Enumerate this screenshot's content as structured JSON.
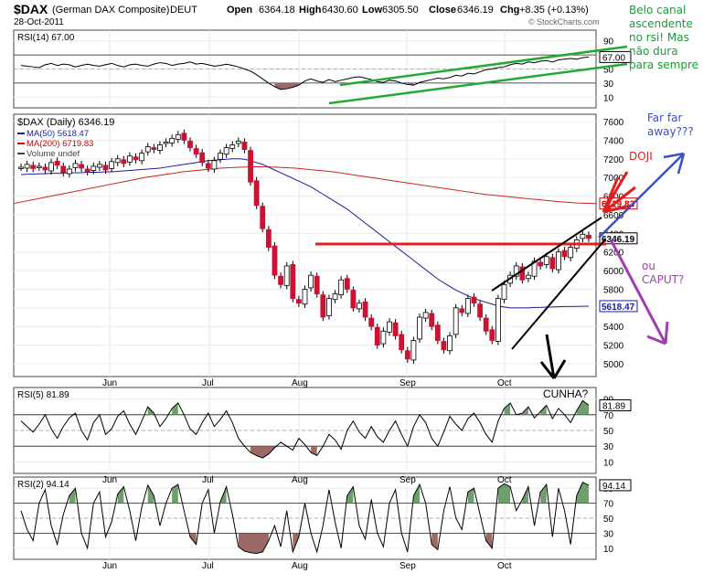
{
  "header": {
    "symbol": "$DAX",
    "name": "(German DAX Composite)",
    "exchange": "DEUT",
    "date": "28-Oct-2011",
    "open_label": "Open",
    "open": "6364.18",
    "high_label": "High",
    "high": "6430.60",
    "low_label": "Low",
    "low": "6305.50",
    "close_label": "Close",
    "close": "6346.19",
    "chg_label": "Chg",
    "chg": "+8.35 (+0.13%)",
    "watermark": "© StockCharts.com"
  },
  "months": [
    "Jun",
    "Jul",
    "Aug",
    "Sep",
    "Oct"
  ],
  "rsi14": {
    "title": "RSI(14) 67.00",
    "ticks": [
      "90",
      "70",
      "50",
      "30",
      "10"
    ],
    "last_tag": "67.00",
    "values": [
      55,
      54,
      53,
      52,
      56,
      58,
      55,
      57,
      56,
      53,
      55,
      57,
      55,
      54,
      56,
      58,
      55,
      53,
      56,
      57,
      55,
      54,
      57,
      59,
      58,
      55,
      57,
      58,
      60,
      57,
      58,
      56,
      54,
      55,
      57,
      55,
      53,
      50,
      47,
      42,
      36,
      30,
      25,
      21,
      22,
      24,
      27,
      33,
      36,
      33,
      31,
      35,
      32,
      34,
      36,
      38,
      39,
      37,
      35,
      32,
      31,
      34,
      33,
      30,
      28,
      27,
      31,
      33,
      35,
      37,
      36,
      38,
      41,
      40,
      44,
      43,
      46,
      49,
      50,
      52,
      53,
      56,
      58,
      57,
      60,
      59,
      61,
      62,
      60,
      63,
      64,
      65,
      64,
      66,
      67
    ]
  },
  "price": {
    "title": "$DAX (Daily) 6346.19",
    "legend": [
      {
        "label": "MA(50) 5618.47",
        "color": "#1c1c9c"
      },
      {
        "label": "MA(200) 6719.83",
        "color": "#cc0000"
      },
      {
        "label": "Volume undef",
        "color": "#444444"
      }
    ],
    "ticks": [
      "7600",
      "7400",
      "7200",
      "7000",
      "6800",
      "6600",
      "6400",
      "6200",
      "6000",
      "5800",
      "5600",
      "5400",
      "5200",
      "5000"
    ],
    "tags": {
      "close": "6346.19",
      "ma50": "5618.47",
      "ma200": "6719.83"
    },
    "closes": [
      7110,
      7140,
      7095,
      7120,
      7080,
      7160,
      7130,
      7050,
      7090,
      7150,
      7100,
      7060,
      7120,
      7140,
      7080,
      7170,
      7200,
      7150,
      7230,
      7190,
      7260,
      7330,
      7300,
      7350,
      7380,
      7420,
      7460,
      7400,
      7320,
      7250,
      7160,
      7100,
      7180,
      7260,
      7320,
      7350,
      7390,
      7300,
      6950,
      6700,
      6450,
      6250,
      5950,
      5850,
      6050,
      5700,
      5650,
      5800,
      5950,
      5750,
      5500,
      5700,
      5750,
      5900,
      5800,
      5600,
      5650,
      5500,
      5400,
      5200,
      5350,
      5450,
      5300,
      5150,
      5050,
      5250,
      5500,
      5550,
      5400,
      5250,
      5150,
      5300,
      5600,
      5550,
      5700,
      5650,
      5500,
      5350,
      5250,
      5700,
      5850,
      5950,
      6050,
      5900,
      5950,
      6100,
      6050,
      6150,
      6020,
      6200,
      6150,
      6250,
      6330,
      6390,
      6346
    ],
    "ma50": [
      7030,
      7035,
      7035,
      7040,
      7040,
      7045,
      7045,
      7045,
      7050,
      7050,
      7050,
      7055,
      7055,
      7055,
      7060,
      7060,
      7065,
      7070,
      7075,
      7080,
      7085,
      7090,
      7095,
      7100,
      7110,
      7120,
      7130,
      7140,
      7150,
      7160,
      7170,
      7180,
      7185,
      7190,
      7195,
      7200,
      7200,
      7195,
      7180,
      7160,
      7140,
      7110,
      7080,
      7050,
      7020,
      6990,
      6960,
      6930,
      6900,
      6860,
      6820,
      6780,
      6740,
      6700,
      6660,
      6610,
      6560,
      6510,
      6460,
      6410,
      6360,
      6310,
      6260,
      6210,
      6160,
      6110,
      6060,
      6010,
      5960,
      5910,
      5870,
      5830,
      5790,
      5760,
      5730,
      5700,
      5680,
      5660,
      5640,
      5620,
      5610,
      5600,
      5600,
      5600,
      5600,
      5605,
      5605,
      5608,
      5610,
      5612,
      5614,
      5615,
      5616,
      5617,
      5618
    ],
    "ma200": [
      6720,
      6760,
      6800,
      6840,
      6880,
      6920,
      6960,
      7000,
      7030,
      7060,
      7080,
      7100,
      7110,
      7115,
      7110,
      7100,
      7080,
      7060,
      7030,
      7000,
      6970,
      6940,
      6910,
      6880,
      6850,
      6820,
      6800,
      6780,
      6760,
      6740,
      6725,
      6720
    ]
  },
  "rsi5": {
    "title": "RSI(5) 81.89",
    "ticks": [
      "90",
      "70",
      "50",
      "30",
      "10"
    ],
    "last_tag": "81.89",
    "values": [
      62,
      55,
      48,
      58,
      70,
      52,
      40,
      55,
      66,
      72,
      50,
      38,
      60,
      70,
      45,
      52,
      68,
      75,
      58,
      45,
      62,
      80,
      72,
      55,
      65,
      78,
      85,
      70,
      52,
      45,
      60,
      72,
      55,
      64,
      75,
      60,
      40,
      30,
      22,
      18,
      15,
      20,
      28,
      35,
      30,
      25,
      40,
      32,
      22,
      18,
      30,
      45,
      38,
      26,
      50,
      62,
      48,
      40,
      55,
      42,
      35,
      50,
      62,
      45,
      30,
      55,
      70,
      60,
      40,
      30,
      48,
      68,
      58,
      50,
      65,
      72,
      60,
      45,
      35,
      62,
      78,
      85,
      70,
      72,
      80,
      66,
      74,
      82,
      65,
      78,
      70,
      60,
      75,
      88,
      82
    ]
  },
  "rsi2": {
    "title": "RSI(2) 94.14",
    "ticks": [
      "90",
      "70",
      "50",
      "30",
      "10"
    ],
    "last_tag": "94.14",
    "values": [
      60,
      35,
      20,
      70,
      88,
      40,
      15,
      55,
      80,
      90,
      30,
      10,
      70,
      85,
      25,
      45,
      82,
      92,
      60,
      20,
      65,
      94,
      80,
      40,
      70,
      90,
      95,
      60,
      25,
      15,
      70,
      88,
      30,
      72,
      92,
      55,
      12,
      6,
      4,
      3,
      5,
      20,
      40,
      12,
      60,
      5,
      25,
      70,
      30,
      5,
      40,
      88,
      45,
      10,
      80,
      92,
      40,
      22,
      75,
      30,
      12,
      70,
      88,
      30,
      5,
      80,
      95,
      70,
      15,
      8,
      60,
      92,
      50,
      35,
      85,
      90,
      55,
      20,
      10,
      90,
      96,
      92,
      60,
      75,
      92,
      40,
      85,
      95,
      25,
      90,
      60,
      15,
      80,
      98,
      94
    ]
  },
  "annotations": {
    "canal": "Belo canal ascendente no rsi! Mas não dura para sempre",
    "far": "Far far away???",
    "doji": "DOJI",
    "caput": "ou CAPUT?",
    "cunha": "CUNHA?"
  }
}
